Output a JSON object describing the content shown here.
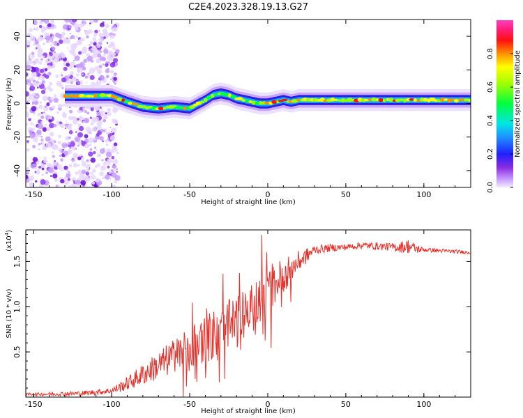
{
  "figure_title": "C2E4.2023.328.19.13.G27",
  "chart_data": [
    {
      "type": "heatmap",
      "title": "",
      "xlabel": "Height of straight line (km)",
      "ylabel": "Frequency (Hz)",
      "xlim": [
        -155,
        130
      ],
      "ylim": [
        -50,
        50
      ],
      "x_ticks": [
        -150,
        -100,
        -50,
        0,
        50,
        100
      ],
      "x_tick_labels": [
        "-150",
        "-100",
        "-50",
        "0",
        "50",
        "100"
      ],
      "y_ticks": [
        -40,
        -20,
        0,
        20,
        40
      ],
      "y_tick_labels": [
        "-40",
        "-20",
        "0",
        "20",
        "40"
      ],
      "colorbar": {
        "label": "Normalized spectral amplitude",
        "range": [
          0,
          1
        ],
        "ticks": [
          0.0,
          0.2,
          0.4,
          0.6,
          0.8
        ],
        "tick_labels": [
          "0.0",
          "0.2",
          "0.4",
          "0.6",
          "0.8"
        ]
      },
      "noise_region_x": [
        -155,
        -100
      ],
      "signal_ridge": {
        "x": [
          -130,
          -120,
          -110,
          -100,
          -90,
          -80,
          -70,
          -60,
          -50,
          -45,
          -40,
          -35,
          -30,
          -25,
          -20,
          -15,
          -10,
          -5,
          0,
          5,
          10,
          15,
          20,
          30,
          40,
          60,
          80,
          90,
          100,
          130
        ],
        "y": [
          4.5,
          4.5,
          4.5,
          4.5,
          1,
          -2,
          -3,
          -2,
          -3,
          -0.5,
          2,
          5,
          6,
          5,
          3,
          2,
          1,
          0,
          0,
          1,
          2,
          1,
          2,
          2,
          2,
          2,
          2,
          2,
          2,
          2
        ]
      }
    },
    {
      "type": "line",
      "title": "",
      "xlabel": "Height of straight line (km)",
      "ylabel": "SNR (10 * v/v)",
      "y_multiplier_label": "(x10",
      "y_multiplier_exp": "4",
      "y_multiplier_close": ")",
      "xlim": [
        -155,
        130
      ],
      "ylim": [
        0,
        18500
      ],
      "x_ticks": [
        -150,
        -100,
        -50,
        0,
        50,
        100
      ],
      "x_tick_labels": [
        "-150",
        "-100",
        "-50",
        "0",
        "50",
        "100"
      ],
      "y_ticks": [
        5000,
        10000,
        15000
      ],
      "y_tick_labels": [
        "0.5",
        "1.0",
        "1.5"
      ],
      "series": [
        {
          "color": "#e8302a",
          "envelope_x": [
            -155,
            -120,
            -100,
            -90,
            -80,
            -70,
            -60,
            -50,
            -40,
            -30,
            -20,
            -10,
            0,
            5,
            10,
            20,
            30,
            40,
            50,
            60,
            70,
            80,
            85,
            90,
            95,
            100,
            110,
            120,
            130
          ],
          "envelope_y": [
            300,
            400,
            700,
            1500,
            2500,
            3500,
            4500,
            5500,
            6500,
            7300,
            8300,
            9800,
            11500,
            12600,
            13500,
            15000,
            16300,
            16500,
            16600,
            16800,
            16700,
            16600,
            16600,
            16700,
            16400,
            16300,
            16200,
            16100,
            16000
          ],
          "noise_amplitude_x": [
            -155,
            -100,
            -80,
            -60,
            -40,
            -20,
            0,
            10,
            20,
            30,
            50,
            80,
            90,
            100,
            130
          ],
          "noise_amplitude_y": [
            150,
            350,
            1200,
            2000,
            2800,
            3000,
            2500,
            2000,
            1200,
            500,
            350,
            450,
            800,
            250,
            200
          ]
        }
      ]
    }
  ]
}
